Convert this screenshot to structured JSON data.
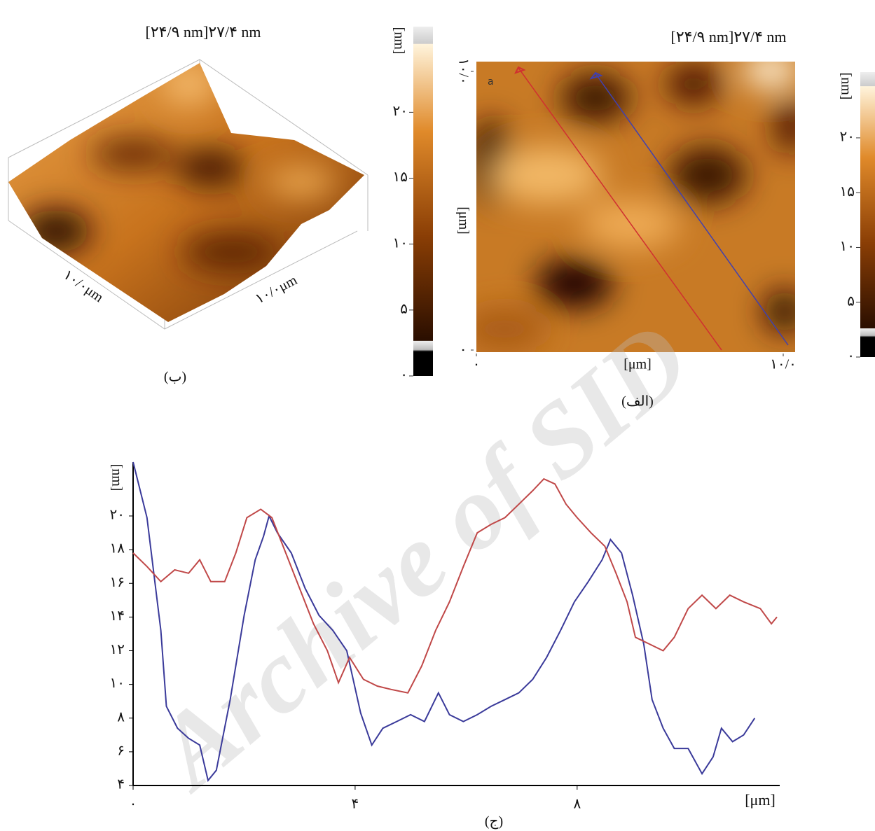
{
  "panel_b": {
    "title": "[۲۴/۹ nm]۲۷/۴ nm",
    "caption": "(ب)",
    "axis_labels": [
      "۱۰/۰μm",
      "۱۰/۰μm"
    ],
    "colorbar": {
      "label": "[nm]",
      "lim": [
        0,
        26.5
      ],
      "ticks": [
        {
          "value": 0,
          "label": "۰"
        },
        {
          "value": 5,
          "label": "۵"
        },
        {
          "value": 10,
          "label": "۱۰"
        },
        {
          "value": 15,
          "label": "۱۵"
        },
        {
          "value": 20,
          "label": "۲۰"
        }
      ]
    }
  },
  "panel_a": {
    "title": "[۲۴/۹ nm]۲۷/۴ nm",
    "caption": "(الف)",
    "marker": "a",
    "x_axis": {
      "label": "[μm]",
      "lim": [
        0,
        10
      ],
      "ticks": [
        {
          "value": 0,
          "label": "۰"
        },
        {
          "value": 10,
          "label": "۱۰/۰"
        }
      ]
    },
    "y_axis": {
      "label": "[μm]",
      "lim": [
        0,
        10
      ],
      "ticks": [
        {
          "value": 0,
          "label": "۰"
        },
        {
          "value": 10,
          "label": "۱۰/۰"
        }
      ]
    },
    "colorbar": {
      "label": "[nm]",
      "lim": [
        0,
        26
      ],
      "ticks": [
        {
          "value": 0,
          "label": "۰"
        },
        {
          "value": 5,
          "label": "۵"
        },
        {
          "value": 10,
          "label": "۱۰"
        },
        {
          "value": 15,
          "label": "۱۵"
        },
        {
          "value": 20,
          "label": "۲۰"
        }
      ]
    }
  },
  "chart_data": {
    "type": "line",
    "caption": "(ج)",
    "xlabel": "[μm]",
    "ylabel": "[nm]",
    "xlim": [
      0,
      11.65
    ],
    "ylim": [
      4,
      23.2
    ],
    "xticks": [
      {
        "value": 0,
        "label": "۰"
      },
      {
        "value": 4,
        "label": "۴"
      },
      {
        "value": 8,
        "label": "۸"
      }
    ],
    "yticks": [
      {
        "value": 4,
        "label": "۴"
      },
      {
        "value": 6,
        "label": "۶"
      },
      {
        "value": 8,
        "label": "۸"
      },
      {
        "value": 10,
        "label": "۱۰"
      },
      {
        "value": 12,
        "label": "۱۲"
      },
      {
        "value": 14,
        "label": "۱۴"
      },
      {
        "value": 16,
        "label": "۱۶"
      },
      {
        "value": 18,
        "label": "۱۸"
      },
      {
        "value": 20,
        "label": "۲۰"
      }
    ],
    "series": [
      {
        "color": "#3a3a9a",
        "x": [
          0,
          0.25,
          0.5,
          0.6,
          0.8,
          1.0,
          1.2,
          1.35,
          1.5,
          1.75,
          2.0,
          2.2,
          2.35,
          2.45,
          2.6,
          2.85,
          3.1,
          3.35,
          3.6,
          3.85,
          4.1,
          4.3,
          4.5,
          4.75,
          5.0,
          5.25,
          5.5,
          5.7,
          5.95,
          6.2,
          6.45,
          6.7,
          6.95,
          7.2,
          7.45,
          7.7,
          7.95,
          8.2,
          8.45,
          8.6,
          8.8,
          9.0,
          9.2,
          9.35,
          9.55,
          9.75,
          10.0,
          10.25,
          10.45,
          10.6,
          10.8,
          11.0,
          11.2
        ],
        "values": [
          23.2,
          19.9,
          13.2,
          8.7,
          7.4,
          6.8,
          6.4,
          4.3,
          4.9,
          9.1,
          14.1,
          17.4,
          18.8,
          20.0,
          19.0,
          17.8,
          15.7,
          14.1,
          13.2,
          12.0,
          8.3,
          6.4,
          7.4,
          7.8,
          8.2,
          7.8,
          9.5,
          8.2,
          7.8,
          8.2,
          8.7,
          9.1,
          9.5,
          10.3,
          11.6,
          13.2,
          14.9,
          16.1,
          17.4,
          18.6,
          17.8,
          15.3,
          12.4,
          9.1,
          7.4,
          6.2,
          6.2,
          4.7,
          5.7,
          7.4,
          6.6,
          7.0,
          8.0
        ]
      },
      {
        "color": "#c04848",
        "x": [
          0,
          0.25,
          0.5,
          0.75,
          1.0,
          1.2,
          1.4,
          1.65,
          1.85,
          2.05,
          2.3,
          2.5,
          2.75,
          3.0,
          3.25,
          3.5,
          3.7,
          3.9,
          4.15,
          4.4,
          4.65,
          4.95,
          5.2,
          5.45,
          5.7,
          5.95,
          6.2,
          6.45,
          6.7,
          6.95,
          7.2,
          7.4,
          7.6,
          7.8,
          8.0,
          8.25,
          8.5,
          8.7,
          8.9,
          9.05,
          9.3,
          9.55,
          9.75,
          10.0,
          10.25,
          10.5,
          10.75,
          11.0,
          11.3,
          11.5,
          11.6
        ],
        "values": [
          17.8,
          17.0,
          16.1,
          16.8,
          16.6,
          17.4,
          16.1,
          16.1,
          17.8,
          19.9,
          20.4,
          19.9,
          17.8,
          15.7,
          13.6,
          12.0,
          10.1,
          11.6,
          10.3,
          9.9,
          9.7,
          9.5,
          11.1,
          13.2,
          14.9,
          17.0,
          19.0,
          19.5,
          19.9,
          20.7,
          21.5,
          22.2,
          21.9,
          20.7,
          19.9,
          19.0,
          18.2,
          16.6,
          14.9,
          12.8,
          12.4,
          12.0,
          12.8,
          14.5,
          15.3,
          14.5,
          15.3,
          14.9,
          14.5,
          13.6,
          14.0
        ]
      }
    ]
  },
  "watermark": "Archive of SID"
}
